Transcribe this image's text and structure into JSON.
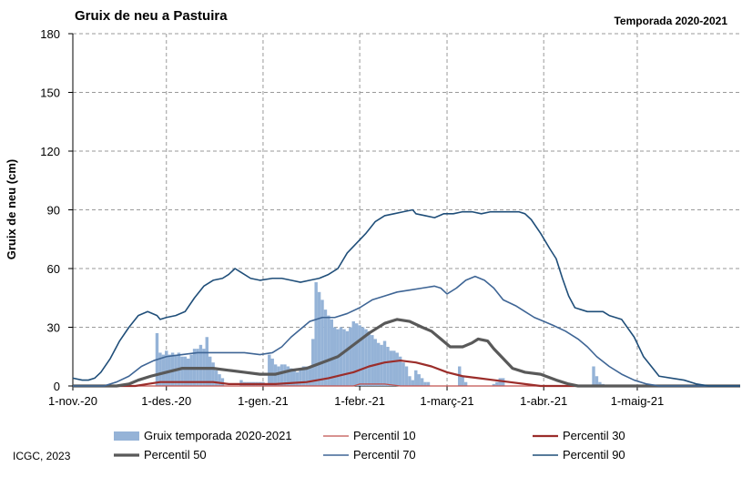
{
  "chart_data": {
    "type": "line",
    "title": "Gruix de neu a Pastuira",
    "season": "Temporada 2020-2021",
    "ylabel": "Gruix de neu (cm)",
    "xlabel": "",
    "ylim": [
      0,
      180
    ],
    "yticks": [
      "0",
      "30",
      "60",
      "90",
      "120",
      "150",
      "180"
    ],
    "xrange_days": [
      0,
      214
    ],
    "xticks": [
      {
        "day": 0,
        "label": "1-nov.-20"
      },
      {
        "day": 30,
        "label": "1-des.-20"
      },
      {
        "day": 61,
        "label": "1-gen.-21"
      },
      {
        "day": 92,
        "label": "1-febr.-21"
      },
      {
        "day": 120,
        "label": "1-març-21"
      },
      {
        "day": 151,
        "label": "1-abr.-21"
      },
      {
        "day": 181,
        "label": "1-maig-21"
      }
    ],
    "grid": true,
    "legend_position": "bottom",
    "footer": "ICGC, 2023",
    "series": [
      {
        "name": "Gruix temporada 2020-2021",
        "type": "bar",
        "color": "#95b3d7",
        "points": [
          [
            27,
            27
          ],
          [
            28,
            17
          ],
          [
            29,
            16
          ],
          [
            30,
            18
          ],
          [
            31,
            16
          ],
          [
            32,
            17
          ],
          [
            33,
            16
          ],
          [
            34,
            17
          ],
          [
            35,
            15
          ],
          [
            36,
            15
          ],
          [
            37,
            14
          ],
          [
            38,
            16
          ],
          [
            39,
            19
          ],
          [
            40,
            19
          ],
          [
            41,
            21
          ],
          [
            42,
            19
          ],
          [
            43,
            25
          ],
          [
            44,
            15
          ],
          [
            45,
            12
          ],
          [
            46,
            8
          ],
          [
            47,
            6
          ],
          [
            48,
            4
          ],
          [
            54,
            3
          ],
          [
            55,
            2
          ],
          [
            56,
            2
          ],
          [
            57,
            2
          ],
          [
            58,
            2
          ],
          [
            59,
            2
          ],
          [
            60,
            2
          ],
          [
            61,
            2
          ],
          [
            62,
            1
          ],
          [
            63,
            16
          ],
          [
            64,
            14
          ],
          [
            65,
            11
          ],
          [
            66,
            10
          ],
          [
            67,
            11
          ],
          [
            68,
            11
          ],
          [
            69,
            10
          ],
          [
            70,
            9
          ],
          [
            71,
            8
          ],
          [
            72,
            7
          ],
          [
            73,
            9
          ],
          [
            74,
            10
          ],
          [
            75,
            10
          ],
          [
            76,
            10
          ],
          [
            77,
            24
          ],
          [
            78,
            53
          ],
          [
            79,
            48
          ],
          [
            80,
            44
          ],
          [
            81,
            39
          ],
          [
            82,
            36
          ],
          [
            83,
            34
          ],
          [
            84,
            30
          ],
          [
            85,
            29
          ],
          [
            86,
            30
          ],
          [
            87,
            29
          ],
          [
            88,
            28
          ],
          [
            89,
            30
          ],
          [
            90,
            33
          ],
          [
            91,
            32
          ],
          [
            92,
            31
          ],
          [
            93,
            30
          ],
          [
            94,
            29
          ],
          [
            95,
            28
          ],
          [
            96,
            26
          ],
          [
            97,
            24
          ],
          [
            98,
            22
          ],
          [
            99,
            21
          ],
          [
            100,
            23
          ],
          [
            101,
            20
          ],
          [
            102,
            18
          ],
          [
            103,
            18
          ],
          [
            104,
            17
          ],
          [
            105,
            15
          ],
          [
            106,
            12
          ],
          [
            107,
            10
          ],
          [
            108,
            5
          ],
          [
            109,
            3
          ],
          [
            110,
            8
          ],
          [
            111,
            6
          ],
          [
            112,
            4
          ],
          [
            113,
            2
          ],
          [
            114,
            2
          ],
          [
            124,
            10
          ],
          [
            125,
            5
          ],
          [
            126,
            2
          ],
          [
            135,
            1
          ],
          [
            136,
            2
          ],
          [
            137,
            4
          ],
          [
            138,
            4
          ],
          [
            167,
            10
          ],
          [
            168,
            5
          ],
          [
            169,
            2
          ],
          [
            170,
            1
          ]
        ]
      },
      {
        "name": "Percentil 10",
        "color": "#c0504d",
        "width": 1.3,
        "points": [
          [
            0,
            0
          ],
          [
            90,
            0
          ],
          [
            92,
            1
          ],
          [
            100,
            1
          ],
          [
            105,
            0
          ],
          [
            214,
            0
          ]
        ]
      },
      {
        "name": "Percentil 30",
        "color": "#9b2d2a",
        "width": 2.2,
        "points": [
          [
            0,
            0
          ],
          [
            20,
            0
          ],
          [
            24,
            1
          ],
          [
            28,
            2
          ],
          [
            32,
            2
          ],
          [
            45,
            2
          ],
          [
            50,
            1
          ],
          [
            60,
            1
          ],
          [
            65,
            1
          ],
          [
            75,
            2
          ],
          [
            82,
            4
          ],
          [
            90,
            7
          ],
          [
            95,
            10
          ],
          [
            100,
            12
          ],
          [
            105,
            13
          ],
          [
            110,
            12
          ],
          [
            115,
            10
          ],
          [
            120,
            7
          ],
          [
            125,
            5
          ],
          [
            130,
            4
          ],
          [
            135,
            3
          ],
          [
            140,
            2
          ],
          [
            145,
            1
          ],
          [
            150,
            0
          ],
          [
            214,
            0
          ]
        ]
      },
      {
        "name": "Percentil 50",
        "color": "#595959",
        "width": 3.2,
        "points": [
          [
            0,
            0
          ],
          [
            14,
            0
          ],
          [
            18,
            1
          ],
          [
            21,
            3
          ],
          [
            25,
            5
          ],
          [
            30,
            7
          ],
          [
            35,
            9
          ],
          [
            40,
            9
          ],
          [
            45,
            9
          ],
          [
            50,
            8
          ],
          [
            55,
            7
          ],
          [
            60,
            6
          ],
          [
            65,
            6
          ],
          [
            70,
            8
          ],
          [
            75,
            9
          ],
          [
            80,
            12
          ],
          [
            85,
            15
          ],
          [
            90,
            21
          ],
          [
            95,
            27
          ],
          [
            100,
            32
          ],
          [
            104,
            34
          ],
          [
            108,
            33
          ],
          [
            112,
            30
          ],
          [
            115,
            28
          ],
          [
            118,
            24
          ],
          [
            121,
            20
          ],
          [
            125,
            20
          ],
          [
            128,
            22
          ],
          [
            130,
            24
          ],
          [
            133,
            23
          ],
          [
            135,
            19
          ],
          [
            138,
            14
          ],
          [
            141,
            9
          ],
          [
            145,
            7
          ],
          [
            150,
            6
          ],
          [
            155,
            3
          ],
          [
            159,
            1
          ],
          [
            162,
            0
          ],
          [
            214,
            0
          ]
        ]
      },
      {
        "name": "Percentil 70",
        "color": "#3e6595",
        "width": 1.6,
        "points": [
          [
            0,
            0
          ],
          [
            10,
            0
          ],
          [
            14,
            2
          ],
          [
            18,
            5
          ],
          [
            22,
            10
          ],
          [
            26,
            13
          ],
          [
            30,
            15
          ],
          [
            35,
            16
          ],
          [
            40,
            17
          ],
          [
            45,
            17
          ],
          [
            50,
            17
          ],
          [
            55,
            17
          ],
          [
            60,
            16
          ],
          [
            64,
            17
          ],
          [
            67,
            20
          ],
          [
            70,
            25
          ],
          [
            73,
            29
          ],
          [
            76,
            33
          ],
          [
            80,
            35
          ],
          [
            84,
            35
          ],
          [
            88,
            37
          ],
          [
            92,
            40
          ],
          [
            96,
            44
          ],
          [
            100,
            46
          ],
          [
            104,
            48
          ],
          [
            108,
            49
          ],
          [
            112,
            50
          ],
          [
            116,
            51
          ],
          [
            118,
            50
          ],
          [
            120,
            47
          ],
          [
            123,
            50
          ],
          [
            126,
            54
          ],
          [
            129,
            56
          ],
          [
            132,
            54
          ],
          [
            135,
            50
          ],
          [
            138,
            44
          ],
          [
            142,
            41
          ],
          [
            145,
            38
          ],
          [
            148,
            35
          ],
          [
            151,
            33
          ],
          [
            154,
            31
          ],
          [
            158,
            28
          ],
          [
            162,
            24
          ],
          [
            165,
            20
          ],
          [
            168,
            15
          ],
          [
            172,
            10
          ],
          [
            176,
            6
          ],
          [
            180,
            3
          ],
          [
            184,
            1
          ],
          [
            188,
            0
          ],
          [
            214,
            0
          ]
        ]
      },
      {
        "name": "Percentil 90",
        "color": "#1f4e79",
        "width": 1.6,
        "points": [
          [
            0,
            4
          ],
          [
            3,
            3
          ],
          [
            5,
            3
          ],
          [
            7,
            4
          ],
          [
            9,
            7
          ],
          [
            12,
            14
          ],
          [
            15,
            23
          ],
          [
            18,
            30
          ],
          [
            21,
            36
          ],
          [
            24,
            38
          ],
          [
            27,
            36
          ],
          [
            28,
            34
          ],
          [
            30,
            35
          ],
          [
            33,
            36
          ],
          [
            36,
            38
          ],
          [
            39,
            45
          ],
          [
            42,
            51
          ],
          [
            45,
            54
          ],
          [
            48,
            55
          ],
          [
            50,
            57
          ],
          [
            52,
            60
          ],
          [
            54,
            58
          ],
          [
            57,
            55
          ],
          [
            60,
            54
          ],
          [
            64,
            55
          ],
          [
            67,
            55
          ],
          [
            70,
            54
          ],
          [
            73,
            53
          ],
          [
            76,
            54
          ],
          [
            79,
            55
          ],
          [
            82,
            57
          ],
          [
            85,
            60
          ],
          [
            88,
            68
          ],
          [
            91,
            73
          ],
          [
            94,
            78
          ],
          [
            97,
            84
          ],
          [
            100,
            87
          ],
          [
            103,
            88
          ],
          [
            106,
            89
          ],
          [
            109,
            90
          ],
          [
            110,
            88
          ],
          [
            113,
            87
          ],
          [
            116,
            86
          ],
          [
            119,
            88
          ],
          [
            122,
            88
          ],
          [
            125,
            89
          ],
          [
            128,
            89
          ],
          [
            131,
            88
          ],
          [
            134,
            89
          ],
          [
            137,
            89
          ],
          [
            140,
            89
          ],
          [
            143,
            89
          ],
          [
            145,
            88
          ],
          [
            147,
            85
          ],
          [
            150,
            78
          ],
          [
            153,
            70
          ],
          [
            155,
            65
          ],
          [
            157,
            55
          ],
          [
            159,
            46
          ],
          [
            161,
            40
          ],
          [
            165,
            38
          ],
          [
            170,
            38
          ],
          [
            172,
            36
          ],
          [
            176,
            34
          ],
          [
            180,
            25
          ],
          [
            183,
            15
          ],
          [
            186,
            9
          ],
          [
            188,
            5
          ],
          [
            192,
            4
          ],
          [
            196,
            3
          ],
          [
            200,
            1
          ],
          [
            204,
            0
          ],
          [
            214,
            0
          ]
        ]
      }
    ]
  }
}
